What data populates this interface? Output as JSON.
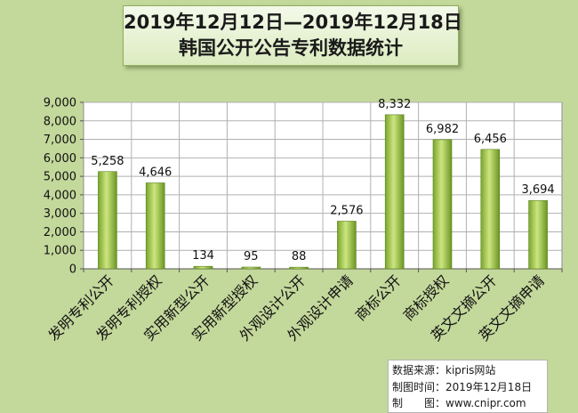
{
  "title": {
    "line1": "2019年12月12日—2019年12月18日",
    "line2": "韩国公开公告专利数据统计"
  },
  "source": {
    "line1": "数据来源：kipris网站",
    "line2": "制图时间：2019年12月18日",
    "line3": "制　　图：www.cnipr.com"
  },
  "colors": {
    "background": "#c3d89b",
    "plot_area": "#ffffff",
    "bar_light": "#c9e27a",
    "bar_dark": "#6e9a24"
  },
  "chart_data": {
    "type": "bar",
    "categories": [
      "发明专利公开",
      "发明专利授权",
      "实用新型公开",
      "实用新型授权",
      "外观设计公开",
      "外观设计申请",
      "商标公开",
      "商标授权",
      "英文文摘公开",
      "英文文摘申请"
    ],
    "values": [
      5258,
      4646,
      134,
      95,
      88,
      2576,
      8332,
      6982,
      6456,
      3694
    ],
    "value_labels": [
      "5,258",
      "4,646",
      "134",
      "95",
      "88",
      "2,576",
      "8,332",
      "6,982",
      "6,456",
      "3,694"
    ],
    "ylim": [
      0,
      9000
    ],
    "yticks": [
      0,
      1000,
      2000,
      3000,
      4000,
      5000,
      6000,
      7000,
      8000,
      9000
    ],
    "ytick_labels": [
      "0",
      "1,000",
      "2,000",
      "3,000",
      "4,000",
      "5,000",
      "6,000",
      "7,000",
      "8,000",
      "9,000"
    ],
    "grid": true,
    "legend": false
  }
}
